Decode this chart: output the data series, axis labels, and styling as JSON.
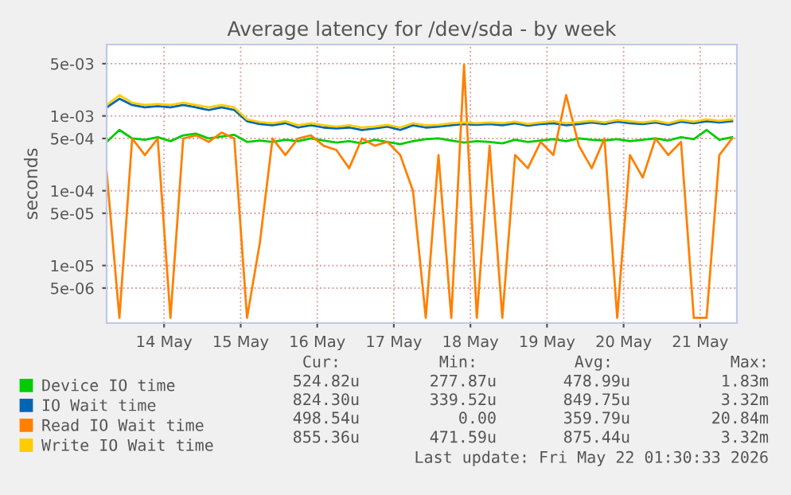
{
  "chart_data": {
    "type": "line",
    "title": "Average latency for /dev/sda - by week",
    "ylabel": "seconds",
    "log": "y",
    "grid": true,
    "legend": "bottom",
    "marker": "none",
    "line_style": "solid",
    "x": [
      "2026-05-13T06:00",
      "2026-05-13T10:00",
      "2026-05-13T14:00",
      "2026-05-13T18:00",
      "2026-05-13T22:00",
      "2026-05-14T02:00",
      "2026-05-14T06:00",
      "2026-05-14T10:00",
      "2026-05-14T14:00",
      "2026-05-14T18:00",
      "2026-05-14T22:00",
      "2026-05-15T02:00",
      "2026-05-15T06:00",
      "2026-05-15T10:00",
      "2026-05-15T14:00",
      "2026-05-15T18:00",
      "2026-05-15T22:00",
      "2026-05-16T02:00",
      "2026-05-16T06:00",
      "2026-05-16T10:00",
      "2026-05-16T14:00",
      "2026-05-16T18:00",
      "2026-05-16T22:00",
      "2026-05-17T02:00",
      "2026-05-17T06:00",
      "2026-05-17T10:00",
      "2026-05-17T14:00",
      "2026-05-17T18:00",
      "2026-05-17T22:00",
      "2026-05-18T02:00",
      "2026-05-18T06:00",
      "2026-05-18T10:00",
      "2026-05-18T14:00",
      "2026-05-18T18:00",
      "2026-05-18T22:00",
      "2026-05-19T02:00",
      "2026-05-19T06:00",
      "2026-05-19T10:00",
      "2026-05-19T14:00",
      "2026-05-19T18:00",
      "2026-05-19T22:00",
      "2026-05-20T02:00",
      "2026-05-20T06:00",
      "2026-05-20T10:00",
      "2026-05-20T14:00",
      "2026-05-20T18:00",
      "2026-05-20T22:00",
      "2026-05-21T02:00",
      "2026-05-21T06:00",
      "2026-05-21T10:00"
    ],
    "xlim": [
      "2026-05-13T06:00",
      "2026-05-21T11:30"
    ],
    "xticks": [
      {
        "value": "2026-05-14",
        "label": "14 May"
      },
      {
        "value": "2026-05-15",
        "label": "15 May"
      },
      {
        "value": "2026-05-16",
        "label": "16 May"
      },
      {
        "value": "2026-05-17",
        "label": "17 May"
      },
      {
        "value": "2026-05-18",
        "label": "18 May"
      },
      {
        "value": "2026-05-19",
        "label": "19 May"
      },
      {
        "value": "2026-05-20",
        "label": "20 May"
      },
      {
        "value": "2026-05-21",
        "label": "21 May"
      }
    ],
    "ylim": [
      1.7e-06,
      0.009
    ],
    "yticks": [
      {
        "value": 5e-06,
        "label": "5e-06"
      },
      {
        "value": 1e-05,
        "label": "1e-05"
      },
      {
        "value": 5e-05,
        "label": "5e-05"
      },
      {
        "value": 0.0001,
        "label": "1e-04"
      },
      {
        "value": 0.0005,
        "label": "5e-04"
      },
      {
        "value": 0.001,
        "label": "1e-03"
      },
      {
        "value": 0.005,
        "label": "5e-03"
      }
    ],
    "series": [
      {
        "name": "Device IO time",
        "color": "#00cc00",
        "values": [
          0.00045,
          0.00065,
          0.0005,
          0.00048,
          0.00052,
          0.00046,
          0.00055,
          0.00058,
          0.0005,
          0.00053,
          0.00056,
          0.00045,
          0.00047,
          0.00045,
          0.00048,
          0.00046,
          0.0005,
          0.00047,
          0.00044,
          0.00046,
          0.00043,
          0.00048,
          0.00045,
          0.00042,
          0.00046,
          0.00049,
          0.0005,
          0.00047,
          0.00044,
          0.00046,
          0.00045,
          0.00043,
          0.00048,
          0.00045,
          0.00047,
          0.00049,
          0.00046,
          0.0005,
          0.00048,
          0.00047,
          0.00049,
          0.00046,
          0.00048,
          0.0005,
          0.00047,
          0.00052,
          0.00049,
          0.00065,
          0.00048,
          0.00052
        ]
      },
      {
        "name": "IO Wait time",
        "color": "#0066b3",
        "values": [
          0.0013,
          0.0017,
          0.0014,
          0.0013,
          0.00135,
          0.0013,
          0.0014,
          0.0013,
          0.0012,
          0.0013,
          0.0012,
          0.00085,
          0.00078,
          0.00075,
          0.0008,
          0.0007,
          0.00075,
          0.0007,
          0.00068,
          0.0007,
          0.00065,
          0.00068,
          0.00072,
          0.00065,
          0.00075,
          0.0007,
          0.00072,
          0.00075,
          0.00078,
          0.00076,
          0.00078,
          0.00075,
          0.0008,
          0.00074,
          0.00078,
          0.0008,
          0.00075,
          0.00078,
          0.00082,
          0.00078,
          0.00084,
          0.0008,
          0.00078,
          0.00082,
          0.00076,
          0.00084,
          0.0008,
          0.00085,
          0.00082,
          0.00085
        ]
      },
      {
        "name": "Read IO Wait time",
        "color": "#ff8000",
        "values": [
          0.00018,
          2e-06,
          0.0005,
          0.0003,
          0.0005,
          2e-06,
          0.0005,
          0.00055,
          0.00045,
          0.0006,
          0.0005,
          2e-06,
          2e-05,
          0.0005,
          0.0003,
          0.0005,
          0.00055,
          0.0004,
          0.00035,
          0.0002,
          0.0005,
          0.0004,
          0.00045,
          0.0003,
          0.0001,
          2e-06,
          0.0003,
          2e-06,
          0.0048,
          2e-06,
          0.0004,
          2e-06,
          0.0003,
          0.0002,
          0.00045,
          0.0003,
          0.0019,
          0.0004,
          0.0002,
          0.0005,
          2e-06,
          0.0003,
          0.00015,
          0.0005,
          0.0003,
          0.00045,
          2e-06,
          2e-06,
          0.0003,
          0.0005
        ]
      },
      {
        "name": "Write IO Wait time",
        "color": "#ffcc00",
        "values": [
          0.0014,
          0.0019,
          0.0015,
          0.0014,
          0.00145,
          0.0014,
          0.0015,
          0.0014,
          0.0013,
          0.0014,
          0.0013,
          0.0009,
          0.00083,
          0.0008,
          0.00085,
          0.00075,
          0.0008,
          0.00075,
          0.00072,
          0.00075,
          0.0007,
          0.00072,
          0.00076,
          0.0007,
          0.0008,
          0.00075,
          0.00076,
          0.0008,
          0.00082,
          0.0008,
          0.00082,
          0.0008,
          0.00084,
          0.00078,
          0.00082,
          0.00085,
          0.0008,
          0.00083,
          0.00086,
          0.00082,
          0.00088,
          0.00085,
          0.00082,
          0.00086,
          0.0008,
          0.00088,
          0.00084,
          0.0009,
          0.00086,
          0.0009
        ]
      }
    ],
    "annotations": [
      "Cur:",
      "Min:",
      "Avg:",
      "Max:",
      "524.82u",
      "277.87u",
      "478.99u",
      "1.83m",
      "824.30u",
      "339.52u",
      "849.75u",
      "3.32m",
      "498.54u",
      "0.00",
      "359.79u",
      "20.84m",
      "855.36u",
      "471.59u",
      "875.44u",
      "3.32m",
      "Last update: Fri May 22 01:30:33 2026"
    ]
  }
}
